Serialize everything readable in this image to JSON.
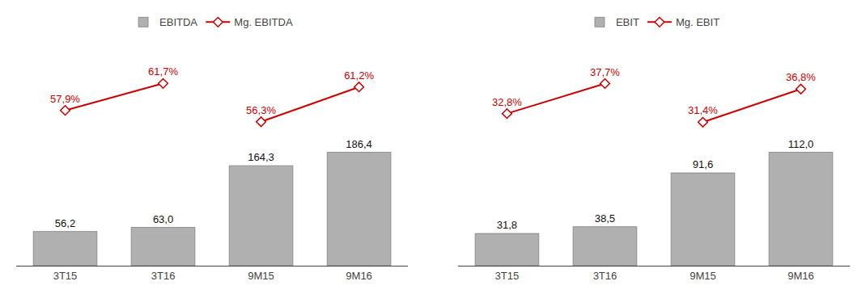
{
  "chart_data": [
    {
      "type": "bar",
      "categories": [
        "3T15",
        "3T16",
        "9M15",
        "9M16"
      ],
      "series": [
        {
          "name": "EBITDA",
          "type": "bar",
          "color": "#b0b0b0",
          "axis": "y",
          "values": [
            56.2,
            63.0,
            164.3,
            186.4
          ],
          "value_labels": [
            "56,2",
            "63,0",
            "164,3",
            "186,4"
          ]
        },
        {
          "name": "Mg. EBITDA",
          "type": "line",
          "color": "#cc0000",
          "marker": "diamond",
          "axis": "y2",
          "values": [
            57.9,
            61.7,
            null,
            null
          ],
          "value_labels": [
            "57,9%",
            "61,7%",
            null,
            null
          ]
        },
        {
          "type": "line",
          "color": "#cc0000",
          "marker": "diamond",
          "axis": "y2",
          "values": [
            null,
            null,
            56.3,
            61.2
          ],
          "value_labels": [
            null,
            null,
            "56,3%",
            "61,2%"
          ]
        }
      ],
      "ylim": [
        0,
        372.8
      ],
      "y2lim": [
        36,
        68
      ],
      "legend": "top",
      "data_labels": true,
      "tick_labels": "x",
      "grid": false
    },
    {
      "type": "bar",
      "categories": [
        "3T15",
        "3T16",
        "9M15",
        "9M16"
      ],
      "series": [
        {
          "name": "EBIT",
          "type": "bar",
          "color": "#b0b0b0",
          "axis": "y",
          "values": [
            31.8,
            38.5,
            91.6,
            112.0
          ],
          "value_labels": [
            "31,8",
            "38,5",
            "91,6",
            "112,0"
          ]
        },
        {
          "name": "Mg. EBIT",
          "type": "line",
          "color": "#cc0000",
          "marker": "diamond",
          "axis": "y2",
          "values": [
            32.8,
            37.7,
            null,
            null
          ],
          "value_labels": [
            "32,8%",
            "37,7%",
            null,
            null
          ]
        },
        {
          "type": "line",
          "color": "#cc0000",
          "marker": "diamond",
          "axis": "y2",
          "values": [
            null,
            null,
            31.4,
            36.8
          ],
          "value_labels": [
            null,
            null,
            "31,4%",
            "36,8%"
          ]
        }
      ],
      "ylim": [
        0,
        224.0
      ],
      "y2lim": [
        8,
        45
      ],
      "legend": "top",
      "data_labels": true,
      "tick_labels": "x",
      "grid": false
    }
  ]
}
